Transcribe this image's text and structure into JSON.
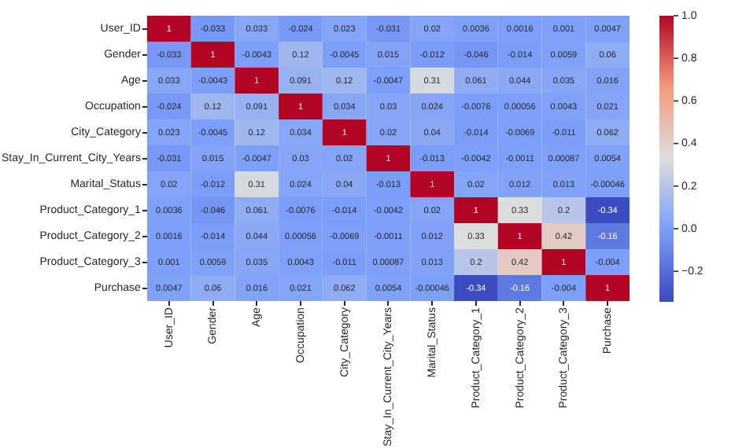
{
  "chart_data": {
    "type": "heatmap",
    "categories": [
      "User_ID",
      "Gender",
      "Age",
      "Occupation",
      "City_Category",
      "Stay_In_Current_City_Years",
      "Marital_Status",
      "Product_Category_1",
      "Product_Category_2",
      "Product_Category_3",
      "Purchase"
    ],
    "y_categories": [
      "User_ID",
      "Gender",
      "Age",
      "Occupation",
      "City_Category",
      "Stay_In_Current_City_Years",
      "Marital_Status",
      "Product_Category_1",
      "Product_Category_2",
      "Product_Category_3",
      "Purchase"
    ],
    "cells": [
      [
        1,
        -0.033,
        0.033,
        -0.024,
        0.023,
        -0.031,
        0.02,
        0.0036,
        0.0016,
        0.001,
        0.0047
      ],
      [
        -0.033,
        1,
        -0.0043,
        0.12,
        -0.0045,
        0.015,
        -0.012,
        -0.046,
        -0.014,
        0.0059,
        0.06
      ],
      [
        0.033,
        -0.0043,
        1,
        0.091,
        0.12,
        -0.0047,
        0.31,
        0.061,
        0.044,
        0.035,
        0.016
      ],
      [
        -0.024,
        0.12,
        0.091,
        1,
        0.034,
        0.03,
        0.024,
        -0.0076,
        0.00056,
        0.0043,
        0.021
      ],
      [
        0.023,
        -0.0045,
        0.12,
        0.034,
        1,
        0.02,
        0.04,
        -0.014,
        -0.0069,
        -0.011,
        0.062
      ],
      [
        -0.031,
        0.015,
        -0.0047,
        0.03,
        0.02,
        1,
        -0.013,
        -0.0042,
        -0.0011,
        0.00087,
        0.0054
      ],
      [
        0.02,
        -0.012,
        0.31,
        0.024,
        0.04,
        -0.013,
        1,
        0.02,
        0.012,
        0.013,
        -0.00046
      ],
      [
        0.0036,
        -0.046,
        0.061,
        -0.0076,
        -0.014,
        -0.0042,
        0.02,
        1,
        0.33,
        0.2,
        -0.34
      ],
      [
        0.0016,
        -0.014,
        0.044,
        0.00056,
        -0.0069,
        -0.0011,
        0.012,
        0.33,
        1,
        0.42,
        -0.16
      ],
      [
        0.001,
        0.0059,
        0.035,
        0.0043,
        -0.011,
        0.00087,
        0.013,
        0.2,
        0.42,
        1,
        -0.004
      ],
      [
        0.0047,
        0.06,
        0.016,
        0.021,
        0.062,
        0.0054,
        -0.00046,
        -0.34,
        -0.16,
        -0.004,
        1
      ]
    ],
    "data_labels": true,
    "clim": [
      -0.34,
      1
    ],
    "cticks": [
      {
        "value": -0.2,
        "label": "−0.2"
      },
      {
        "value": 0,
        "label": "0.0"
      },
      {
        "value": 0.2,
        "label": "0.2"
      },
      {
        "value": 0.4,
        "label": "0.4"
      },
      {
        "value": 0.6,
        "label": "0.6"
      },
      {
        "value": 0.8,
        "label": "0.8"
      },
      {
        "value": 1,
        "label": "1.0"
      }
    ]
  }
}
